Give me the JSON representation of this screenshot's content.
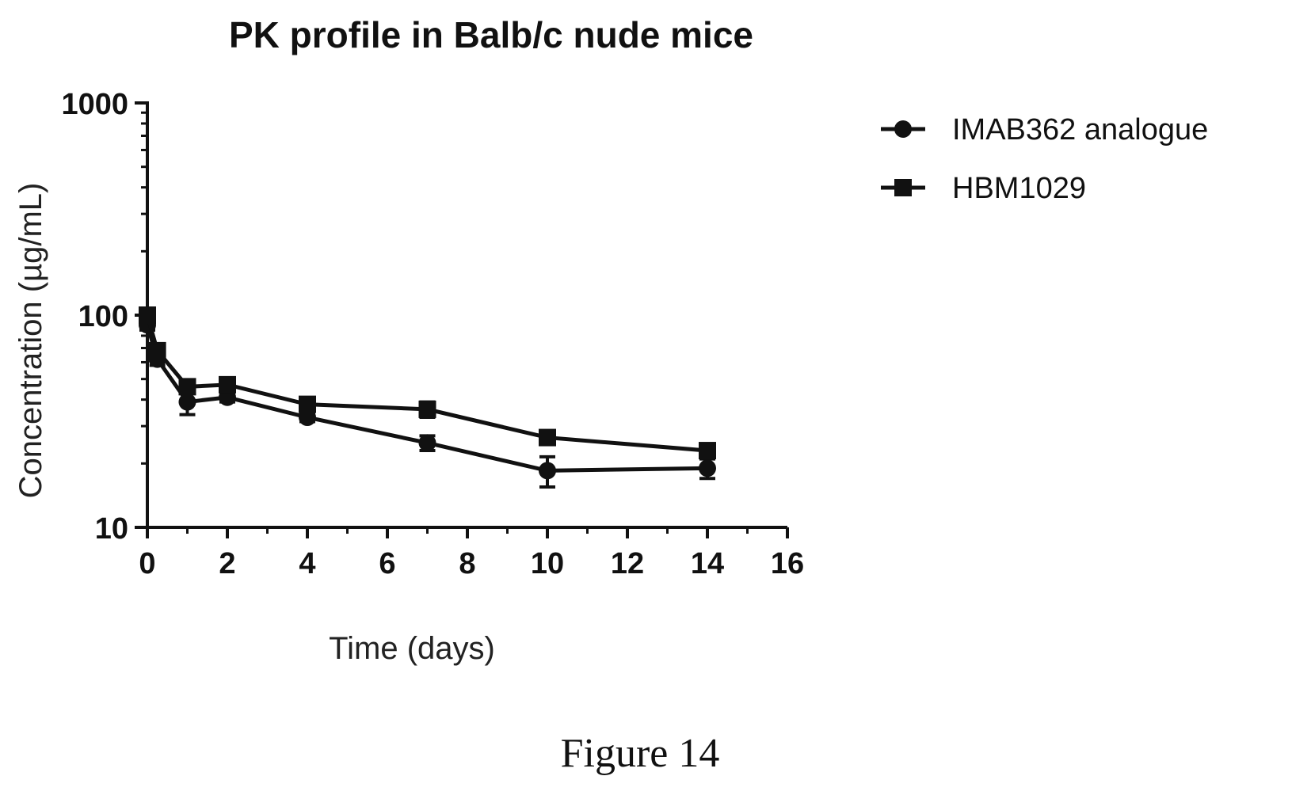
{
  "chart_data": {
    "type": "line",
    "title": "PK profile in Balb/c nude mice",
    "xlabel": "Time (days)",
    "ylabel": "Concentration (µg/mL)",
    "xlim": [
      0,
      16
    ],
    "ylim": [
      10,
      1000
    ],
    "y_scale": "log",
    "x_ticks": [
      "0",
      "2",
      "4",
      "6",
      "8",
      "10",
      "12",
      "14",
      "16"
    ],
    "y_ticks": [
      "10",
      "100",
      "1000"
    ],
    "legend_position": "right",
    "grid": false,
    "series": [
      {
        "name": "IMAB362 analogue",
        "marker": "circle",
        "color": "#111111",
        "x": [
          0,
          0.25,
          1,
          2,
          4,
          7,
          10,
          14
        ],
        "y": [
          90,
          62,
          39,
          41,
          33,
          25,
          18.5,
          19
        ],
        "err": [
          5,
          4,
          5,
          2,
          1.5,
          2,
          3,
          2
        ]
      },
      {
        "name": "HBM1029",
        "marker": "square",
        "color": "#111111",
        "x": [
          0,
          0.25,
          1,
          2,
          4,
          7,
          10,
          14
        ],
        "y": [
          100,
          68,
          46,
          47,
          38,
          36,
          26.5,
          23
        ],
        "err": [
          6,
          4,
          3,
          2,
          2,
          3,
          1.5,
          1.5
        ]
      }
    ]
  },
  "caption": "Figure 14"
}
